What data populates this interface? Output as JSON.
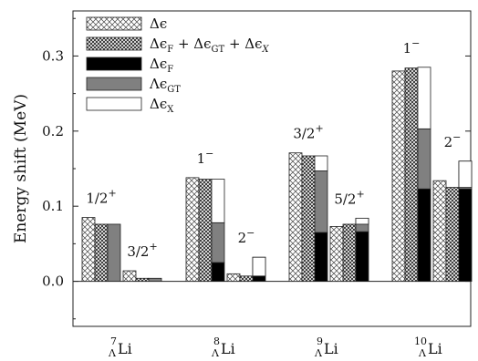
{
  "chart_data": {
    "type": "bar",
    "ylabel": "Energy shift (MeV)",
    "ylim": [
      -0.06,
      0.36
    ],
    "y_ticks": [
      "0.0",
      "0.1",
      "0.2",
      "0.3"
    ],
    "y_tick_values": [
      0.0,
      0.1,
      0.2,
      0.3
    ],
    "grid": false,
    "legend_position": "top-left",
    "series": [
      {
        "name": "Δϵ",
        "style": "crosshatch-light"
      },
      {
        "name": "ΔϵF + ΔϵGT + ΔϵX",
        "style": "crosshatch-dark"
      },
      {
        "name": "ΔϵF",
        "style": "black"
      },
      {
        "name": "ΛϵGT",
        "style": "gray"
      },
      {
        "name": "ΔϵX",
        "style": "white"
      }
    ],
    "legend_labels": [
      {
        "main": "Δϵ",
        "sub": ""
      },
      {
        "main": "Δϵ",
        "sub": "F",
        "rest": " + Δϵ",
        "sub2": "GT",
        "rest2": " + Δϵ",
        "sub3": "X"
      },
      {
        "main": "Δϵ",
        "sub": "F"
      },
      {
        "main": "Λϵ",
        "sub": "GT"
      },
      {
        "main": "Δϵ",
        "sub": "X"
      }
    ],
    "groups": [
      {
        "x_label": {
          "mass": "7",
          "lambda": "Λ",
          "element": "Li"
        },
        "states": [
          {
            "label": "1/2",
            "sup": "+",
            "delta_eps": 0.085,
            "sum": 0.076,
            "F": 0.0,
            "GT": 0.076,
            "X": 0.0
          },
          {
            "label": "3/2",
            "sup": "+",
            "delta_eps": 0.014,
            "sum": 0.004,
            "F": 0.0,
            "GT": 0.004,
            "X": 0.0
          }
        ]
      },
      {
        "x_label": {
          "mass": "8",
          "lambda": "Λ",
          "element": "Li"
        },
        "states": [
          {
            "label": "1",
            "sup": "−",
            "delta_eps": 0.138,
            "sum": 0.136,
            "F": 0.025,
            "GT": 0.053,
            "X": 0.058
          },
          {
            "label": "2",
            "sup": "−",
            "delta_eps": 0.01,
            "sum": 0.007,
            "F": 0.025,
            "GT": 0.007,
            "X": -0.025
          }
        ]
      },
      {
        "x_label": {
          "mass": "9",
          "lambda": "Λ",
          "element": "Li"
        },
        "states": [
          {
            "label": "3/2",
            "sup": "+",
            "delta_eps": 0.171,
            "sum": 0.167,
            "F": 0.065,
            "GT": 0.082,
            "X": 0.02
          },
          {
            "label": "5/2",
            "sup": "+",
            "delta_eps": 0.073,
            "sum": 0.076,
            "F": 0.066,
            "GT": 0.018,
            "X": -0.008
          }
        ]
      },
      {
        "x_label": {
          "mass": "10",
          "lambda": "Λ",
          "element": "Li"
        },
        "states": [
          {
            "label": "1",
            "sup": "−",
            "delta_eps": 0.28,
            "sum": 0.284,
            "F": 0.123,
            "GT": 0.08,
            "X": 0.082
          },
          {
            "label": "2",
            "sup": "−",
            "delta_eps": 0.134,
            "sum": 0.125,
            "F": 0.123,
            "GT": 0.037,
            "X": -0.035
          }
        ]
      }
    ]
  }
}
